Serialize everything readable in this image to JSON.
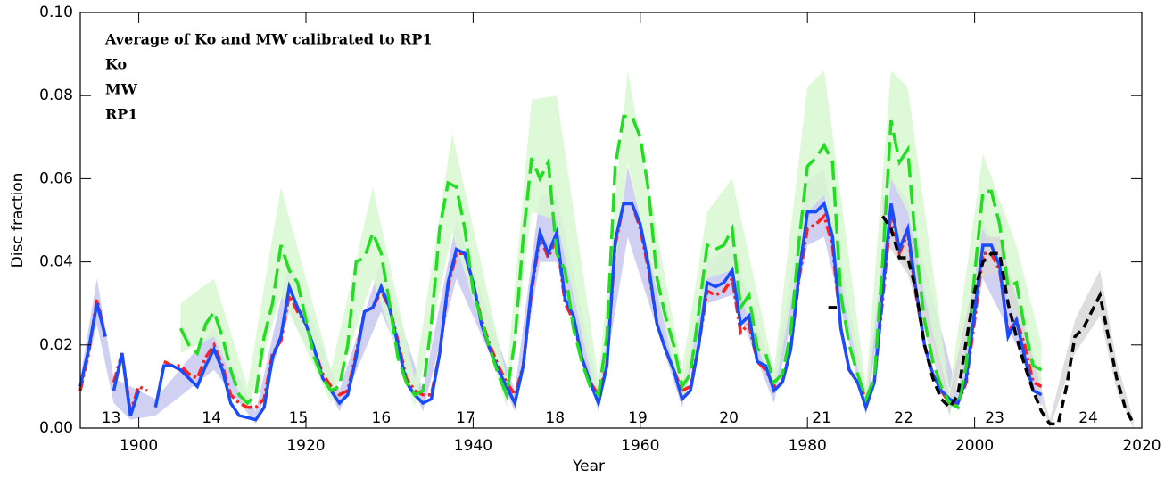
{
  "chart_data": {
    "type": "line",
    "xlabel": "Year",
    "ylabel": "Disc fraction",
    "xlim": [
      1893,
      2020
    ],
    "xticks": [
      1900,
      1920,
      1940,
      1960,
      1980,
      2000,
      2020
    ],
    "ylim": [
      0,
      0.1
    ],
    "yticks": [
      {
        "value": 0,
        "label": "0.00"
      },
      {
        "value": 0.02,
        "label": "0.02"
      },
      {
        "value": 0.04,
        "label": "0.04"
      },
      {
        "value": 0.06,
        "label": "0.06"
      },
      {
        "value": 0.08,
        "label": "0.08"
      },
      {
        "value": 0.1,
        "label": "0.10"
      }
    ],
    "legend": "upper left",
    "annotations": [
      {
        "text": "13",
        "x": 1896.7
      },
      {
        "text": "14",
        "x": 1908.7
      },
      {
        "text": "15",
        "x": 1919.1
      },
      {
        "text": "16",
        "x": 1929
      },
      {
        "text": "17",
        "x": 1939.1
      },
      {
        "text": "18",
        "x": 1949.8
      },
      {
        "text": "19",
        "x": 1959.7
      },
      {
        "text": "20",
        "x": 1970.6
      },
      {
        "text": "21",
        "x": 1981.7
      },
      {
        "text": "22",
        "x": 1991.5
      },
      {
        "text": "23",
        "x": 2002.4
      },
      {
        "text": "24",
        "x": 2013.6
      }
    ],
    "series": [
      {
        "name": "Average of Ko and MW calibrated to RP1",
        "color": "#ff2020",
        "linestyle": "dash-dot",
        "x": [
          1893,
          1894,
          1895,
          1896,
          1896.5,
          1897,
          1898,
          1899,
          1900,
          1901,
          1902,
          1903,
          1904,
          1905,
          1906,
          1907,
          1908,
          1909,
          1910,
          1911,
          1912,
          1913,
          1914,
          1915,
          1916,
          1917,
          1918,
          1919,
          1920,
          1921,
          1922,
          1923,
          1924,
          1925,
          1926,
          1927,
          1928,
          1929,
          1930,
          1931,
          1932,
          1933,
          1934,
          1935,
          1936,
          1937,
          1938,
          1939,
          1940,
          1941,
          1942,
          1943,
          1944,
          1945,
          1946,
          1947,
          1948,
          1949,
          1950,
          1951,
          1952,
          1953,
          1954,
          1955,
          1956,
          1957,
          1958,
          1959,
          1960,
          1961,
          1962,
          1963,
          1964,
          1965,
          1966,
          1967,
          1968,
          1969,
          1970,
          1971,
          1972,
          1973,
          1974,
          1975,
          1976,
          1977,
          1978,
          1979,
          1980,
          1981,
          1982,
          1983,
          1984,
          1985,
          1986,
          1987,
          1988,
          1989,
          1990,
          1991,
          1992,
          1993,
          1994,
          1995,
          1996,
          1997,
          1998,
          1999,
          2000,
          2001,
          2002,
          2003,
          2004,
          2005,
          2006,
          2007,
          2008
        ],
        "values": [
          0.009,
          0.018,
          0.031,
          0.022,
          null,
          0.011,
          0.018,
          0.004,
          0.01,
          0.009,
          null,
          0.016,
          0.015,
          0.015,
          0.013,
          0.012,
          0.017,
          0.02,
          0.015,
          0.008,
          0.006,
          0.005,
          0.005,
          0.007,
          0.018,
          0.021,
          0.032,
          0.028,
          0.025,
          0.019,
          0.013,
          0.01,
          0.008,
          0.009,
          0.018,
          0.028,
          0.029,
          0.033,
          0.029,
          0.021,
          0.012,
          0.009,
          0.008,
          0.008,
          0.018,
          0.034,
          0.042,
          0.042,
          0.035,
          0.026,
          0.02,
          0.015,
          0.011,
          0.008,
          0.015,
          0.033,
          0.046,
          0.041,
          0.046,
          0.03,
          0.026,
          0.017,
          0.011,
          0.008,
          0.015,
          0.044,
          0.054,
          0.054,
          0.048,
          0.038,
          0.025,
          0.019,
          0.014,
          0.009,
          0.01,
          0.02,
          0.033,
          0.032,
          0.033,
          0.036,
          0.023,
          0.025,
          0.016,
          0.014,
          0.01,
          0.011,
          0.019,
          0.036,
          0.048,
          0.049,
          0.051,
          0.044,
          0.024,
          0.014,
          0.011,
          0.007,
          0.011,
          0.031,
          0.052,
          0.042,
          0.047,
          0.032,
          0.02,
          0.013,
          0.009,
          0.006,
          0.006,
          0.011,
          0.026,
          0.042,
          0.042,
          0.038,
          0.023,
          0.026,
          0.02,
          0.011,
          0.01
        ]
      },
      {
        "name": "Ko",
        "color": "#1a4cff",
        "linestyle": "solid",
        "x": [
          1893,
          1894,
          1895,
          1896,
          1896.5,
          1897,
          1898,
          1899,
          1900,
          1901,
          1902,
          1903,
          1904,
          1905,
          1906,
          1907,
          1908,
          1909,
          1910,
          1911,
          1912,
          1913,
          1914,
          1915,
          1916,
          1917,
          1918,
          1919,
          1920,
          1921,
          1922,
          1923,
          1924,
          1925,
          1926,
          1927,
          1928,
          1929,
          1930,
          1931,
          1932,
          1933,
          1934,
          1935,
          1936,
          1937,
          1938,
          1939,
          1940,
          1941,
          1942,
          1943,
          1944,
          1945,
          1946,
          1947,
          1948,
          1949,
          1950,
          1951,
          1952,
          1953,
          1954,
          1955,
          1956,
          1957,
          1958,
          1959,
          1960,
          1961,
          1962,
          1963,
          1964,
          1965,
          1966,
          1967,
          1968,
          1969,
          1970,
          1971,
          1972,
          1973,
          1974,
          1975,
          1976,
          1977,
          1978,
          1979,
          1980,
          1981,
          1982,
          1983,
          1984,
          1985,
          1986,
          1987,
          1988,
          1989,
          1990,
          1991,
          1992,
          1993,
          1994,
          1995,
          1996,
          1997,
          1998,
          1999,
          2000,
          2001,
          2002,
          2003,
          2004,
          2005,
          2006,
          2007,
          2008
        ],
        "values": [
          0.01,
          0.019,
          0.03,
          0.022,
          null,
          0.009,
          0.018,
          0.003,
          0.009,
          null,
          0.005,
          0.015,
          0.015,
          0.014,
          0.012,
          0.01,
          0.015,
          0.019,
          0.014,
          0.006,
          0.003,
          0.0025,
          0.002,
          0.005,
          0.017,
          0.022,
          0.034,
          0.029,
          0.025,
          0.019,
          0.012,
          0.009,
          0.006,
          0.008,
          0.017,
          0.028,
          0.029,
          0.034,
          0.029,
          0.02,
          0.011,
          0.008,
          0.006,
          0.007,
          0.018,
          0.035,
          0.043,
          0.042,
          0.035,
          0.025,
          0.019,
          0.014,
          0.01,
          0.006,
          0.015,
          0.034,
          0.047,
          0.042,
          0.047,
          0.031,
          0.027,
          0.017,
          0.011,
          0.006,
          0.015,
          0.045,
          0.054,
          0.054,
          0.049,
          0.039,
          0.025,
          0.019,
          0.014,
          0.007,
          0.009,
          0.02,
          0.035,
          0.034,
          0.035,
          0.038,
          0.025,
          0.027,
          0.016,
          0.015,
          0.009,
          0.011,
          0.019,
          0.037,
          0.052,
          0.052,
          0.054,
          0.046,
          0.024,
          0.014,
          0.011,
          0.005,
          0.011,
          0.033,
          0.054,
          0.043,
          0.048,
          0.033,
          0.02,
          0.013,
          0.009,
          0.007,
          0.006,
          0.012,
          0.028,
          0.044,
          0.044,
          0.039,
          0.022,
          0.026,
          0.017,
          0.009,
          0.008
        ],
        "band": {
          "color": "#c8c8f0",
          "x": [
            1893,
            1895,
            1897,
            1899,
            1902,
            1909,
            1914,
            1918,
            1924,
            1929,
            1934,
            1938,
            1945,
            1948,
            1950,
            1955,
            1958.5,
            1965,
            1968,
            1971,
            1976,
            1980,
            1982,
            1987,
            1990,
            1992,
            1998,
            2001,
            2005,
            2008
          ],
          "upper": [
            0.012,
            0.036,
            0.012,
            0.01,
            0.007,
            0.024,
            0.004,
            0.04,
            0.009,
            0.04,
            0.009,
            0.05,
            0.009,
            0.056,
            0.056,
            0.009,
            0.063,
            0.01,
            0.04,
            0.044,
            0.012,
            0.06,
            0.062,
            0.008,
            0.06,
            0.055,
            0.008,
            0.05,
            0.032,
            0.012
          ],
          "lower": [
            0.008,
            0.025,
            0.006,
            0.002,
            0.003,
            0.014,
            0.001,
            0.028,
            0.004,
            0.028,
            0.004,
            0.036,
            0.004,
            0.04,
            0.04,
            0.004,
            0.046,
            0.005,
            0.03,
            0.032,
            0.006,
            0.044,
            0.046,
            0.003,
            0.046,
            0.038,
            0.004,
            0.036,
            0.02,
            0.005
          ]
        }
      },
      {
        "name": "MW",
        "color": "#22dd22",
        "linestyle": "long-dash",
        "x": [
          1905,
          1906,
          1907,
          1908,
          1909,
          1910,
          1911,
          1912,
          1913,
          1914,
          1915,
          1916,
          1917,
          1918,
          1919,
          1920,
          1921,
          1922,
          1923,
          1924,
          1925,
          1926,
          1927,
          1928,
          1929,
          1930,
          1931,
          1932,
          1933,
          1934,
          1935,
          1936,
          1937,
          1938,
          1939,
          1940,
          1941,
          1942,
          1943,
          1944,
          1945,
          1946,
          1947,
          1948,
          1949,
          1950,
          1951,
          1952,
          1953,
          1954,
          1955,
          1956,
          1957,
          1958,
          1959,
          1960,
          1961,
          1962,
          1963,
          1964,
          1965,
          1966,
          1967,
          1968,
          1969,
          1970,
          1971,
          1972,
          1973,
          1974,
          1975,
          1976,
          1977,
          1978,
          1979,
          1980,
          1981,
          1982,
          1983,
          1984,
          1985,
          1986,
          1987,
          1988,
          1989,
          1990,
          1991,
          1992,
          1993,
          1994,
          1995,
          1996,
          1997,
          1998,
          1999,
          2000,
          2001,
          2002,
          2003,
          2004,
          2005,
          2006,
          2007,
          2008
        ],
        "values": [
          0.024,
          0.02,
          0.018,
          0.025,
          0.028,
          0.022,
          0.014,
          0.008,
          0.006,
          0.008,
          0.022,
          0.03,
          0.044,
          0.038,
          0.035,
          0.026,
          0.017,
          0.012,
          0.009,
          0.01,
          0.02,
          0.04,
          0.041,
          0.047,
          0.042,
          0.03,
          0.017,
          0.011,
          0.008,
          0.009,
          0.025,
          0.048,
          0.059,
          0.058,
          0.048,
          0.033,
          0.026,
          0.019,
          0.013,
          0.008,
          0.021,
          0.046,
          0.065,
          0.06,
          0.064,
          0.042,
          0.038,
          0.024,
          0.016,
          0.01,
          0.008,
          0.022,
          0.063,
          0.075,
          0.075,
          0.07,
          0.057,
          0.036,
          0.027,
          0.02,
          0.01,
          0.013,
          0.028,
          0.044,
          0.043,
          0.044,
          0.048,
          0.029,
          0.032,
          0.019,
          0.018,
          0.011,
          0.013,
          0.023,
          0.045,
          0.063,
          0.065,
          0.068,
          0.064,
          0.032,
          0.02,
          0.013,
          0.007,
          0.012,
          0.04,
          0.074,
          0.064,
          0.067,
          0.043,
          0.026,
          0.016,
          0.01,
          0.006,
          0.005,
          0.015,
          0.037,
          0.057,
          0.057,
          0.049,
          0.034,
          0.035,
          0.024,
          0.015,
          0.014
        ],
        "band": {
          "color": "#d8f8d0",
          "x": [
            1905,
            1909,
            1913,
            1917,
            1923,
            1928,
            1933,
            1937.5,
            1944,
            1947,
            1950,
            1955,
            1958.5,
            1965,
            1968,
            1971,
            1976,
            1980,
            1982,
            1987,
            1990,
            1992,
            1997,
            2001,
            2005,
            2008
          ],
          "upper": [
            0.03,
            0.036,
            0.01,
            0.058,
            0.014,
            0.058,
            0.012,
            0.071,
            0.012,
            0.079,
            0.08,
            0.012,
            0.086,
            0.014,
            0.052,
            0.06,
            0.014,
            0.082,
            0.086,
            0.01,
            0.086,
            0.082,
            0.009,
            0.066,
            0.044,
            0.02
          ],
          "lower": [
            0.018,
            0.022,
            0.004,
            0.032,
            0.006,
            0.036,
            0.005,
            0.047,
            0.005,
            0.052,
            0.05,
            0.005,
            0.064,
            0.006,
            0.036,
            0.038,
            0.008,
            0.052,
            0.056,
            0.004,
            0.06,
            0.052,
            0.003,
            0.048,
            0.026,
            0.01
          ]
        }
      },
      {
        "name": "RP1",
        "color": "#000000",
        "linestyle": "dashed",
        "x": [
          1982.5,
          1983.5,
          1986,
          1989,
          1990,
          1991,
          1992,
          1993,
          1994,
          1995,
          1996,
          1997,
          1998,
          1999,
          2000,
          2001,
          2002,
          2003,
          2004,
          2005,
          2006,
          2007,
          2008,
          2009,
          2010,
          2011,
          2012,
          2013,
          2014,
          2015,
          2016,
          2017,
          2018,
          2019
        ],
        "values": [
          0.029,
          0.029,
          null,
          0.051,
          0.048,
          0.041,
          0.041,
          0.033,
          0.02,
          0.012,
          0.007,
          0.005,
          0.008,
          0.021,
          0.033,
          0.04,
          0.042,
          0.042,
          0.03,
          0.022,
          0.015,
          0.009,
          0.004,
          0.001,
          0.001,
          0.01,
          0.022,
          0.024,
          0.028,
          0.032,
          0.022,
          0.012,
          0.005,
          0.001
        ],
        "band": {
          "color": "#d8d8d8",
          "x": [
            1989,
            1992,
            1997,
            2001,
            2003,
            2009,
            2012,
            2015,
            2017,
            2019
          ],
          "upper": [
            0.056,
            0.045,
            0.008,
            0.046,
            0.046,
            0.002,
            0.026,
            0.038,
            0.016,
            0.002
          ],
          "lower": [
            0.046,
            0.037,
            0.003,
            0.036,
            0.038,
            0,
            0.018,
            0.027,
            0.009,
            0
          ]
        }
      }
    ]
  }
}
